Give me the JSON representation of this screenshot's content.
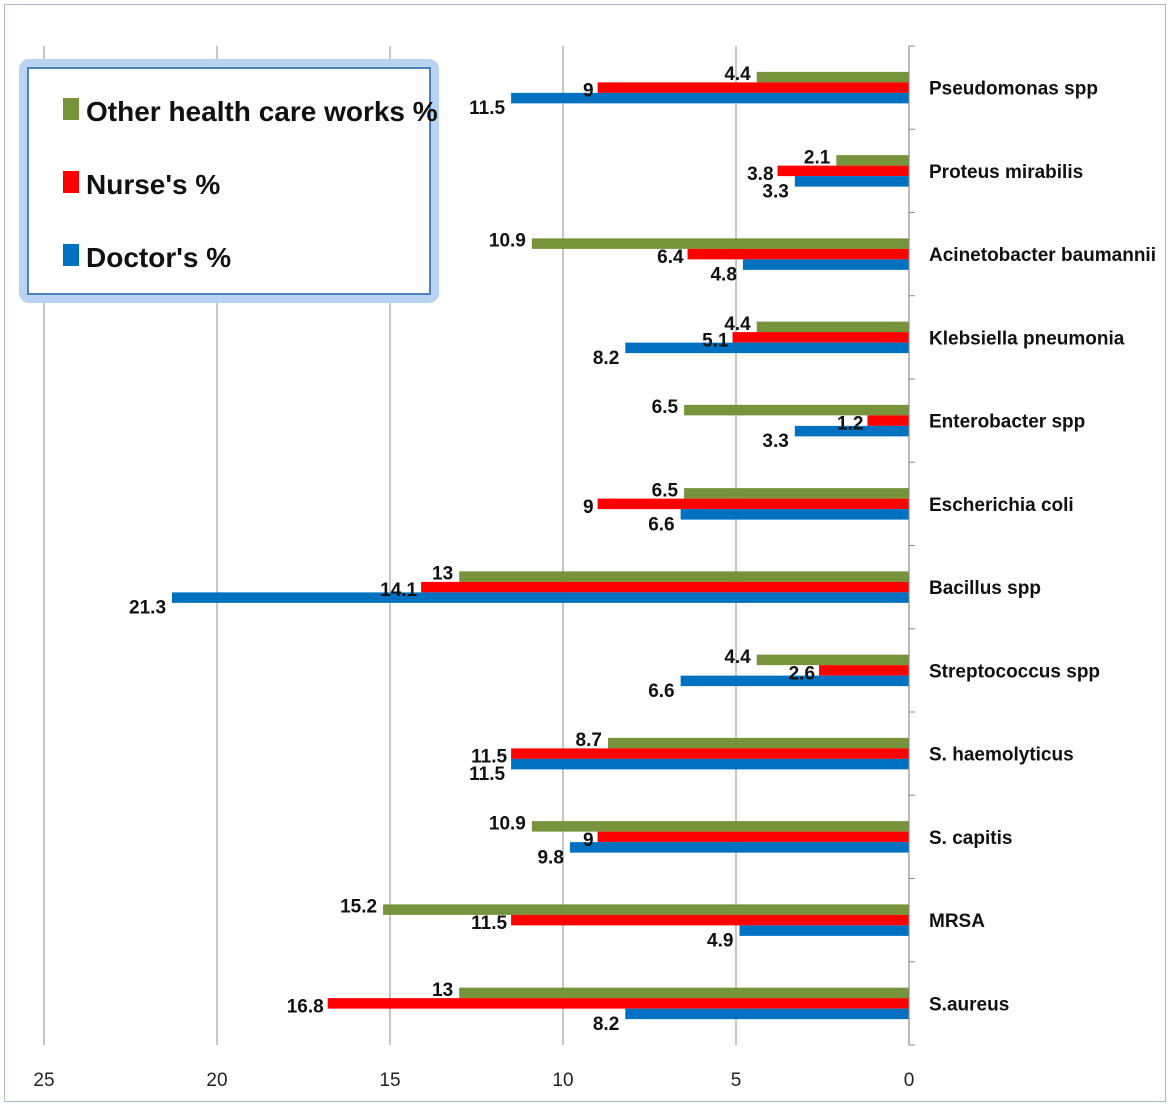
{
  "chart_data": {
    "type": "bar",
    "orientation": "horizontal",
    "reversed_x_axis": true,
    "categories": [
      "Pseudomonas spp",
      "Proteus mirabilis",
      "Acinetobacter baumannii",
      "Klebsiella pneumonia",
      "Enterobacter spp",
      "Escherichia coli",
      "Bacillus spp",
      "Streptococcus spp",
      "S. haemolyticus",
      "S. capitis",
      "MRSA",
      "S.aureus"
    ],
    "series": [
      {
        "name": "Other health care works %",
        "color": "#77933c",
        "values": [
          4.4,
          2.1,
          10.9,
          4.4,
          6.5,
          6.5,
          13,
          4.4,
          8.7,
          10.9,
          15.2,
          13
        ],
        "labels": [
          "4.4",
          "2.1",
          "10.9",
          "4.4",
          "6.5",
          "6.5",
          "13",
          "4.4",
          "8.7",
          "10.9",
          "15.2",
          "13"
        ]
      },
      {
        "name": "Nurse's %",
        "color": "#ff0000",
        "values": [
          9,
          3.8,
          6.4,
          5.1,
          1.2,
          9,
          14.1,
          2.6,
          11.5,
          9,
          11.5,
          16.8
        ],
        "labels": [
          "9",
          "3.8",
          "6.4",
          "5.1",
          "1.2",
          "9",
          "14.1",
          "2.6",
          "11.5",
          "9",
          "11.5",
          "16.8"
        ]
      },
      {
        "name": "Doctor's %",
        "color": "#0070c0",
        "values": [
          11.5,
          3.3,
          4.8,
          8.2,
          3.3,
          6.6,
          21.3,
          6.6,
          11.5,
          9.8,
          4.9,
          8.2
        ],
        "labels": [
          "11.5",
          "3.3",
          "4.8",
          "8.2",
          "3.3",
          "6.6",
          "21.3",
          "6.6",
          "11.5",
          "9.8",
          "4.9",
          "8.2"
        ]
      }
    ],
    "xlim": [
      0,
      25
    ],
    "xticks": [
      "25",
      "20",
      "15",
      "10",
      "5",
      "0"
    ],
    "grid": "vertical major gridlines",
    "legend": {
      "placement": "top-left",
      "order": [
        "Other health care works %",
        "Nurse's %",
        "Doctor's %"
      ]
    },
    "title": "",
    "xlabel": "",
    "ylabel": ""
  }
}
